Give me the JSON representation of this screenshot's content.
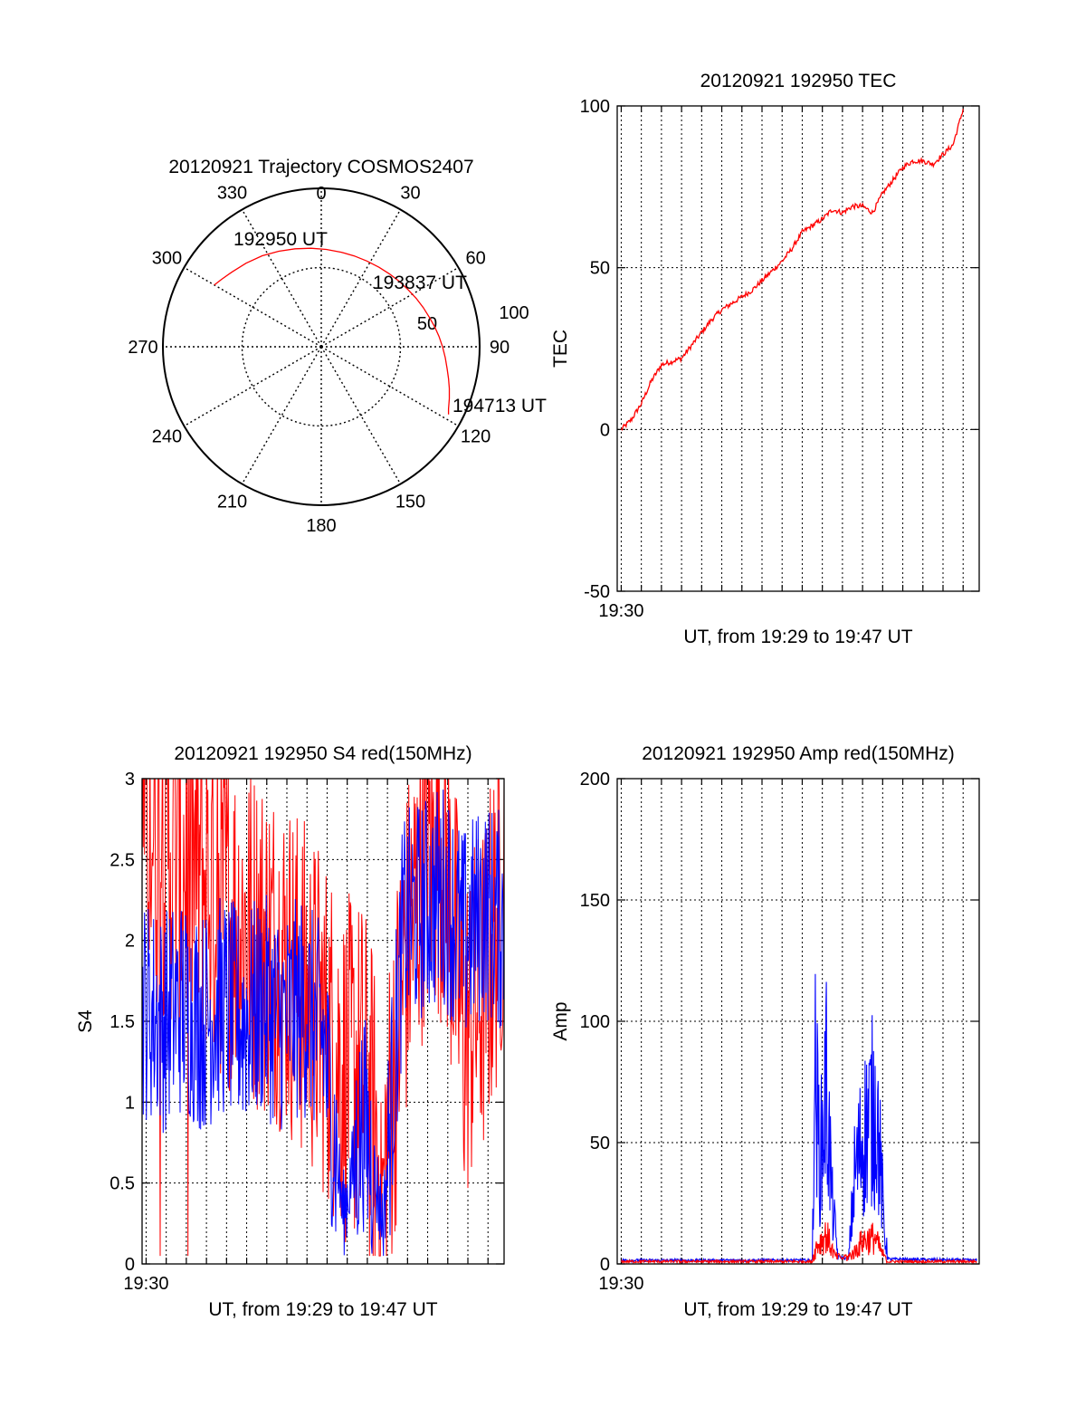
{
  "colors": {
    "series_red": "#ff0000",
    "series_blue": "#0000ff",
    "axis": "#000000",
    "grid": "#000000",
    "background": "#ffffff"
  },
  "chart_data": [
    {
      "id": "polar",
      "type": "scatter",
      "title": "20120921 Trajectory COSMOS2407",
      "azimuth_labels": [
        "0",
        "30",
        "60",
        "90",
        "120",
        "150",
        "180",
        "210",
        "240",
        "270",
        "300",
        "330"
      ],
      "radial_labels": [
        "50",
        "100"
      ],
      "radial_range": [
        0,
        100
      ],
      "grid": true,
      "trajectory": {
        "azimuth": [
          300,
          304,
          310,
          318,
          327,
          336,
          345,
          354,
          3,
          12,
          20,
          28,
          36,
          43,
          50,
          57,
          63,
          69,
          75,
          80,
          85,
          90,
          95,
          100,
          104,
          108,
          112,
          116,
          118
        ],
        "radius": [
          78,
          76,
          73.5,
          71,
          68.5,
          66,
          64,
          62.5,
          61.5,
          61,
          61,
          61.3,
          62,
          63,
          64.3,
          65.7,
          67.3,
          69,
          70.8,
          72.7,
          74.6,
          76.6,
          78.6,
          80.7,
          82.8,
          85,
          87.2,
          89.4,
          91
        ]
      },
      "annotations": [
        {
          "text": "192950 UT",
          "azimuth": 300,
          "radius": 78
        },
        {
          "text": "193837 UT",
          "azimuth": 36,
          "radius": 62
        },
        {
          "text": "194713 UT",
          "azimuth": 118,
          "radius": 91
        }
      ]
    },
    {
      "id": "tec",
      "type": "line",
      "title": "20120921 192950 TEC",
      "xlabel": "UT, from 19:29 to 19:47 UT",
      "ylabel": "TEC",
      "x_tick_labels": [
        "19:30"
      ],
      "xlim_minutes": [
        0,
        18
      ],
      "ylim": [
        -50,
        100
      ],
      "y_ticks": [
        -50,
        0,
        50,
        100
      ],
      "grid": true,
      "series": [
        {
          "color": "red",
          "x_minutes": [
            0,
            0.5,
            1,
            1.5,
            2,
            2.5,
            3,
            3.5,
            4,
            4.5,
            5,
            5.5,
            6,
            6.5,
            7,
            7.5,
            8,
            8.5,
            9,
            9.5,
            10,
            10.5,
            11,
            11.5,
            12,
            12.5,
            13,
            13.5,
            14,
            14.5,
            15,
            15.5,
            16,
            16.5,
            17
          ],
          "values": [
            0,
            3,
            8,
            15,
            20,
            21,
            22,
            26,
            30,
            34,
            37,
            39,
            41,
            43,
            46,
            49,
            52,
            56,
            61,
            63,
            65,
            68,
            67,
            69,
            69,
            67,
            73,
            77,
            81,
            83,
            83,
            82,
            85,
            88,
            99
          ]
        }
      ]
    },
    {
      "id": "s4",
      "type": "line",
      "title": "20120921 192950 S4 red(150MHz)",
      "xlabel": "UT, from 19:29 to 19:47 UT",
      "ylabel": "S4",
      "x_tick_labels": [
        "19:30"
      ],
      "xlim_minutes": [
        0,
        18
      ],
      "ylim": [
        0,
        3
      ],
      "y_ticks": [
        0,
        0.5,
        1,
        1.5,
        2,
        2.5,
        3
      ],
      "grid": true,
      "series": [
        {
          "color": "red",
          "x_minutes": [
            0,
            1,
            2,
            3,
            4,
            5,
            6,
            7,
            8,
            9,
            10,
            11,
            12,
            13,
            14,
            15,
            16,
            17,
            18
          ],
          "values": [
            2.8,
            2.6,
            2.5,
            2.4,
            2.2,
            2.1,
            2.0,
            1.9,
            1.7,
            1.5,
            1.2,
            1.2,
            0.5,
            1.8,
            2.5,
            2.6,
            1.4,
            1.7,
            2.4
          ]
        },
        {
          "color": "blue",
          "x_minutes": [
            0,
            1,
            2,
            3,
            4,
            5,
            6,
            7,
            8,
            9,
            10,
            11,
            12,
            13,
            14,
            15,
            16,
            17,
            18
          ],
          "values": [
            1.6,
            1.5,
            1.6,
            1.5,
            1.6,
            1.5,
            1.6,
            1.5,
            1.6,
            1.4,
            0.3,
            0.9,
            0.25,
            2.1,
            2.2,
            2.3,
            2.0,
            2.2,
            2.1
          ]
        }
      ]
    },
    {
      "id": "amp",
      "type": "line",
      "title": "20120921 192950 Amp red(150MHz)",
      "xlabel": "UT, from 19:29 to 19:47 UT",
      "ylabel": "Amp",
      "x_tick_labels": [
        "19:30"
      ],
      "xlim_minutes": [
        0,
        18
      ],
      "ylim": [
        0,
        200
      ],
      "y_ticks": [
        0,
        50,
        100,
        150,
        200
      ],
      "grid": true,
      "series": [
        {
          "color": "red",
          "x_minutes": [
            0,
            9.5,
            9.7,
            10.2,
            10.6,
            11.0,
            11.6,
            12.0,
            12.6,
            13.2,
            17.7
          ],
          "values": [
            1,
            1,
            12,
            20,
            6,
            2,
            8,
            16,
            18,
            1,
            1
          ]
        },
        {
          "color": "blue",
          "x_minutes": [
            0,
            9.5,
            9.6,
            9.9,
            10.2,
            10.5,
            10.8,
            11.3,
            11.6,
            11.9,
            12.3,
            12.7,
            13.1,
            13.3,
            17.7
          ],
          "values": [
            1.5,
            1.5,
            135,
            70,
            125,
            40,
            3,
            2,
            60,
            80,
            100,
            108,
            20,
            2,
            1.5
          ]
        }
      ]
    }
  ]
}
